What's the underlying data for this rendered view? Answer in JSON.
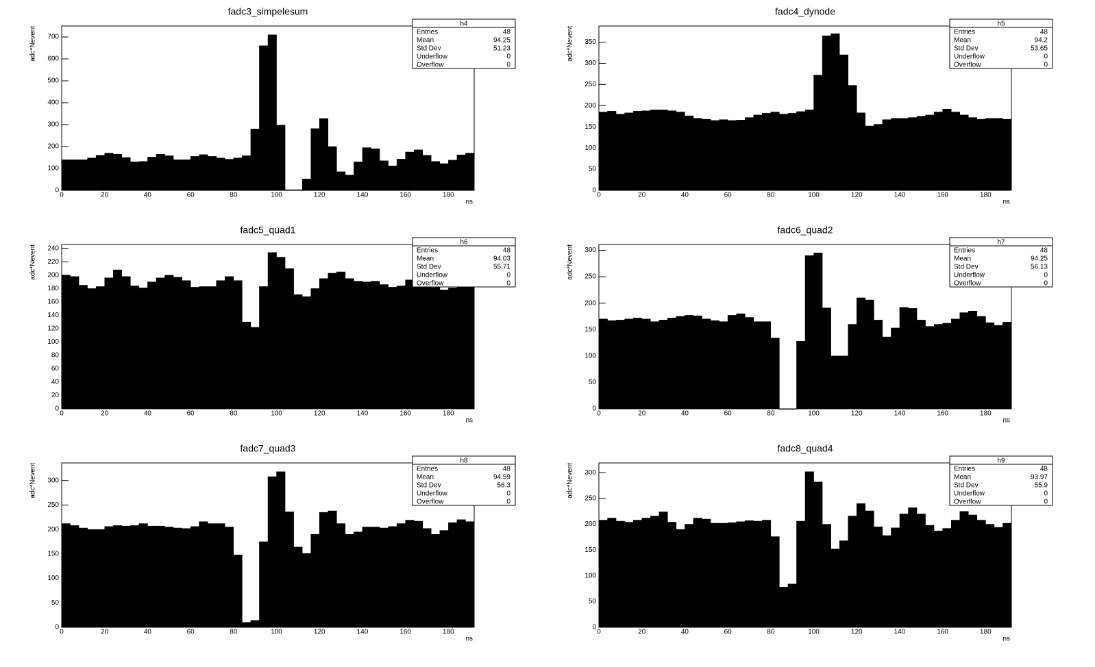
{
  "chart_data": [
    {
      "type": "histogram",
      "title": "fadc3_simpelesum",
      "x_label": "ns",
      "y_label": "adc*Nevent",
      "color": "#000000",
      "bins": [
        0,
        4,
        8,
        12,
        16,
        20,
        24,
        28,
        32,
        36,
        40,
        44,
        48,
        52,
        56,
        60,
        64,
        68,
        72,
        76,
        80,
        84,
        88,
        92,
        96,
        100,
        104,
        108,
        112,
        116,
        120,
        124,
        128,
        132,
        136,
        140,
        144,
        148,
        152,
        156,
        160,
        164,
        168,
        172,
        176,
        180,
        184,
        188,
        192
      ],
      "values": [
        140,
        140,
        140,
        148,
        160,
        170,
        165,
        150,
        130,
        132,
        152,
        165,
        158,
        140,
        140,
        155,
        163,
        155,
        148,
        142,
        148,
        158,
        280,
        660,
        710,
        298,
        3,
        3,
        52,
        282,
        328,
        200,
        85,
        70,
        130,
        195,
        190,
        135,
        112,
        143,
        175,
        185,
        160,
        132,
        122,
        138,
        162,
        170
      ],
      "xlim": [
        0,
        192
      ],
      "xticks": [
        0,
        20,
        40,
        60,
        80,
        100,
        120,
        140,
        160,
        180
      ],
      "ylim": [
        0,
        750
      ],
      "yticks": [
        0,
        100,
        200,
        300,
        400,
        500,
        600,
        700
      ],
      "stats": {
        "name": "h4",
        "rows": [
          {
            "label": "Entries",
            "value": 48
          },
          {
            "label": "Mean",
            "value": 94.25
          },
          {
            "label": "Std Dev",
            "value": 51.23
          },
          {
            "label": "Underflow",
            "value": 0
          },
          {
            "label": "Overflow",
            "value": 0
          }
        ]
      }
    },
    {
      "type": "histogram",
      "title": "fadc4_dynode",
      "x_label": "ns",
      "y_label": "adc*Nevent",
      "color": "#000000",
      "bins": [
        0,
        4,
        8,
        12,
        16,
        20,
        24,
        28,
        32,
        36,
        40,
        44,
        48,
        52,
        56,
        60,
        64,
        68,
        72,
        76,
        80,
        84,
        88,
        92,
        96,
        100,
        104,
        108,
        112,
        116,
        120,
        124,
        128,
        132,
        136,
        140,
        144,
        148,
        152,
        156,
        160,
        164,
        168,
        172,
        176,
        180,
        184,
        188,
        192
      ],
      "values": [
        185,
        187,
        180,
        183,
        187,
        188,
        190,
        190,
        188,
        185,
        176,
        170,
        168,
        165,
        167,
        165,
        166,
        172,
        178,
        182,
        185,
        180,
        182,
        186,
        190,
        272,
        365,
        370,
        320,
        248,
        183,
        152,
        156,
        167,
        170,
        170,
        172,
        175,
        178,
        185,
        192,
        185,
        178,
        172,
        168,
        170,
        170,
        168
      ],
      "xlim": [
        0,
        192
      ],
      "xticks": [
        0,
        20,
        40,
        60,
        80,
        100,
        120,
        140,
        160,
        180
      ],
      "ylim": [
        0,
        388
      ],
      "yticks": [
        0,
        50,
        100,
        150,
        200,
        250,
        300,
        350
      ],
      "stats": {
        "name": "h5",
        "rows": [
          {
            "label": "Entries",
            "value": 48
          },
          {
            "label": "Mean",
            "value": 94.2
          },
          {
            "label": "Std Dev",
            "value": 53.65
          },
          {
            "label": "Underflow",
            "value": 0
          },
          {
            "label": "Overflow",
            "value": 0
          }
        ]
      }
    },
    {
      "type": "histogram",
      "title": "fadc5_quad1",
      "x_label": "ns",
      "y_label": "adc*Nevent",
      "color": "#000000",
      "bins": [
        0,
        4,
        8,
        12,
        16,
        20,
        24,
        28,
        32,
        36,
        40,
        44,
        48,
        52,
        56,
        60,
        64,
        68,
        72,
        76,
        80,
        84,
        88,
        92,
        96,
        100,
        104,
        108,
        112,
        116,
        120,
        124,
        128,
        132,
        136,
        140,
        144,
        148,
        152,
        156,
        160,
        164,
        168,
        172,
        176,
        180,
        184,
        188,
        192
      ],
      "values": [
        200,
        198,
        185,
        180,
        183,
        196,
        208,
        198,
        184,
        181,
        190,
        196,
        200,
        197,
        192,
        182,
        183,
        183,
        192,
        198,
        192,
        130,
        122,
        183,
        234,
        227,
        210,
        171,
        168,
        180,
        195,
        203,
        205,
        195,
        191,
        190,
        191,
        186,
        182,
        184,
        193,
        185,
        183,
        182,
        178,
        181,
        182,
        183
      ],
      "xlim": [
        0,
        192
      ],
      "xticks": [
        0,
        20,
        40,
        60,
        80,
        100,
        120,
        140,
        160,
        180
      ],
      "ylim": [
        0,
        246
      ],
      "yticks": [
        0,
        20,
        40,
        60,
        80,
        100,
        120,
        140,
        160,
        180,
        200,
        220,
        240
      ],
      "stats": {
        "name": "h6",
        "rows": [
          {
            "label": "Entries",
            "value": 48
          },
          {
            "label": "Mean",
            "value": 94.03
          },
          {
            "label": "Std Dev",
            "value": 55.71
          },
          {
            "label": "Underflow",
            "value": 0
          },
          {
            "label": "Overflow",
            "value": 0
          }
        ]
      }
    },
    {
      "type": "histogram",
      "title": "fadc6_quad2",
      "x_label": "ns",
      "y_label": "adc*Nevent",
      "color": "#000000",
      "bins": [
        0,
        4,
        8,
        12,
        16,
        20,
        24,
        28,
        32,
        36,
        40,
        44,
        48,
        52,
        56,
        60,
        64,
        68,
        72,
        76,
        80,
        84,
        88,
        92,
        96,
        100,
        104,
        108,
        112,
        116,
        120,
        124,
        128,
        132,
        136,
        140,
        144,
        148,
        152,
        156,
        160,
        164,
        168,
        172,
        176,
        180,
        184,
        188,
        192
      ],
      "values": [
        170,
        167,
        168,
        170,
        172,
        170,
        165,
        168,
        172,
        175,
        177,
        176,
        170,
        167,
        165,
        177,
        180,
        173,
        165,
        165,
        134,
        0,
        0,
        128,
        290,
        295,
        191,
        100,
        100,
        160,
        210,
        206,
        168,
        136,
        153,
        192,
        190,
        168,
        156,
        160,
        162,
        170,
        182,
        185,
        175,
        163,
        158,
        164
      ],
      "xlim": [
        0,
        192
      ],
      "xticks": [
        0,
        20,
        40,
        60,
        80,
        100,
        120,
        140,
        160,
        180
      ],
      "ylim": [
        0,
        311
      ],
      "yticks": [
        0,
        50,
        100,
        150,
        200,
        250,
        300
      ],
      "stats": {
        "name": "h7",
        "rows": [
          {
            "label": "Entries",
            "value": 48
          },
          {
            "label": "Mean",
            "value": 94.25
          },
          {
            "label": "Std Dev",
            "value": 56.13
          },
          {
            "label": "Underflow",
            "value": 0
          },
          {
            "label": "Overflow",
            "value": 0
          }
        ]
      }
    },
    {
      "type": "histogram",
      "title": "fadc7_quad3",
      "x_label": "ns",
      "y_label": "adc*Nevent",
      "color": "#000000",
      "bins": [
        0,
        4,
        8,
        12,
        16,
        20,
        24,
        28,
        32,
        36,
        40,
        44,
        48,
        52,
        56,
        60,
        64,
        68,
        72,
        76,
        80,
        84,
        88,
        92,
        96,
        100,
        104,
        108,
        112,
        116,
        120,
        124,
        128,
        132,
        136,
        140,
        144,
        148,
        152,
        156,
        160,
        164,
        168,
        172,
        176,
        180,
        184,
        188,
        192
      ],
      "values": [
        212,
        208,
        203,
        200,
        200,
        206,
        208,
        207,
        208,
        212,
        207,
        207,
        205,
        203,
        202,
        206,
        216,
        212,
        212,
        205,
        148,
        10,
        14,
        175,
        308,
        318,
        236,
        164,
        151,
        190,
        235,
        238,
        212,
        190,
        195,
        205,
        205,
        203,
        206,
        212,
        219,
        217,
        202,
        190,
        198,
        214,
        220,
        216
      ],
      "xlim": [
        0,
        192
      ],
      "xticks": [
        0,
        20,
        40,
        60,
        80,
        100,
        120,
        140,
        160,
        180
      ],
      "ylim": [
        0,
        336
      ],
      "yticks": [
        0,
        50,
        100,
        150,
        200,
        250,
        300
      ],
      "stats": {
        "name": "h8",
        "rows": [
          {
            "label": "Entries",
            "value": 48
          },
          {
            "label": "Mean",
            "value": 94.59
          },
          {
            "label": "Std Dev",
            "value": 56.3
          },
          {
            "label": "Underflow",
            "value": 0
          },
          {
            "label": "Overflow",
            "value": 0
          }
        ]
      }
    },
    {
      "type": "histogram",
      "title": "fadc8_quad4",
      "x_label": "ns",
      "y_label": "adc*Nevent",
      "color": "#000000",
      "bins": [
        0,
        4,
        8,
        12,
        16,
        20,
        24,
        28,
        32,
        36,
        40,
        44,
        48,
        52,
        56,
        60,
        64,
        68,
        72,
        76,
        80,
        84,
        88,
        92,
        96,
        100,
        104,
        108,
        112,
        116,
        120,
        124,
        128,
        132,
        136,
        140,
        144,
        148,
        152,
        156,
        160,
        164,
        168,
        172,
        176,
        180,
        184,
        188,
        192
      ],
      "values": [
        208,
        212,
        206,
        204,
        208,
        212,
        216,
        224,
        204,
        190,
        200,
        212,
        210,
        202,
        202,
        203,
        205,
        207,
        206,
        208,
        176,
        78,
        84,
        206,
        302,
        282,
        200,
        152,
        168,
        216,
        240,
        226,
        195,
        178,
        193,
        220,
        232,
        220,
        198,
        187,
        192,
        208,
        225,
        218,
        208,
        200,
        194,
        202
      ],
      "xlim": [
        0,
        192
      ],
      "xticks": [
        0,
        20,
        40,
        60,
        80,
        100,
        120,
        140,
        160,
        180
      ],
      "ylim": [
        0,
        319
      ],
      "yticks": [
        0,
        50,
        100,
        150,
        200,
        250,
        300
      ],
      "stats": {
        "name": "h9",
        "rows": [
          {
            "label": "Entries",
            "value": 48
          },
          {
            "label": "Mean",
            "value": 93.97
          },
          {
            "label": "Std Dev",
            "value": 55.9
          },
          {
            "label": "Underflow",
            "value": 0
          },
          {
            "label": "Overflow",
            "value": 0
          }
        ]
      }
    }
  ]
}
